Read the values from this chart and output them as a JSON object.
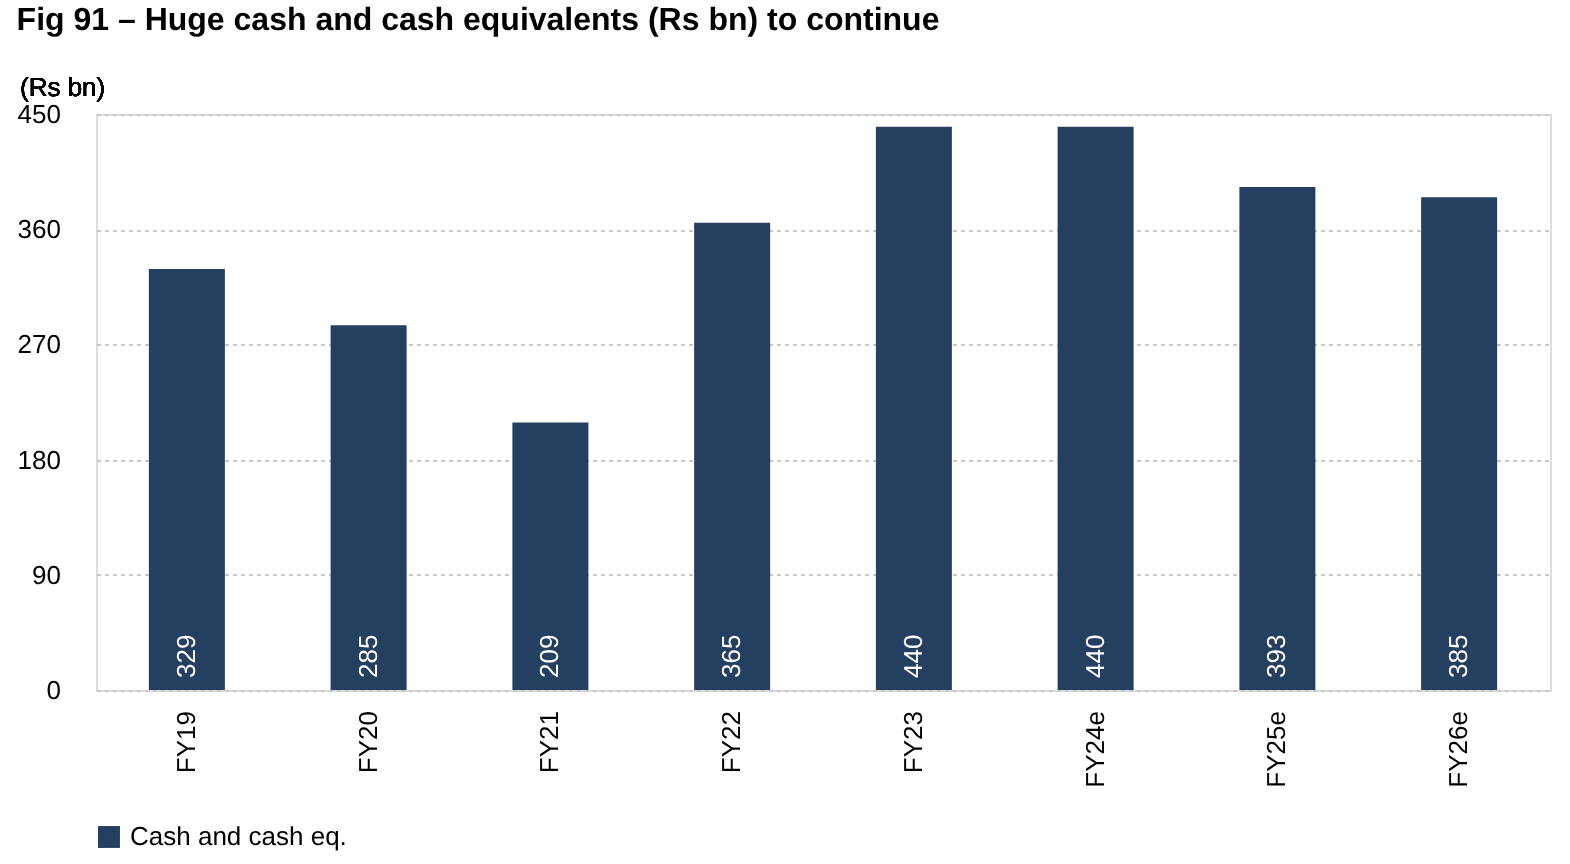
{
  "chart_data": {
    "type": "bar",
    "title": "Fig 91 – Huge cash and cash equivalents (Rs bn) to continue",
    "ylabel": "(Rs bn)",
    "categories": [
      "FY19",
      "FY20",
      "FY21",
      "FY22",
      "FY23",
      "FY24e",
      "FY25e",
      "FY26e"
    ],
    "series": [
      {
        "name": "Cash and cash eq.",
        "color": "#253f60",
        "values": [
          329,
          285,
          209,
          365,
          440,
          440,
          393,
          385
        ]
      }
    ],
    "ylim": [
      0,
      450
    ],
    "yticks": [
      0,
      90,
      180,
      270,
      360,
      450
    ],
    "grid": "y",
    "legend": "bottom",
    "data_labels": true
  }
}
